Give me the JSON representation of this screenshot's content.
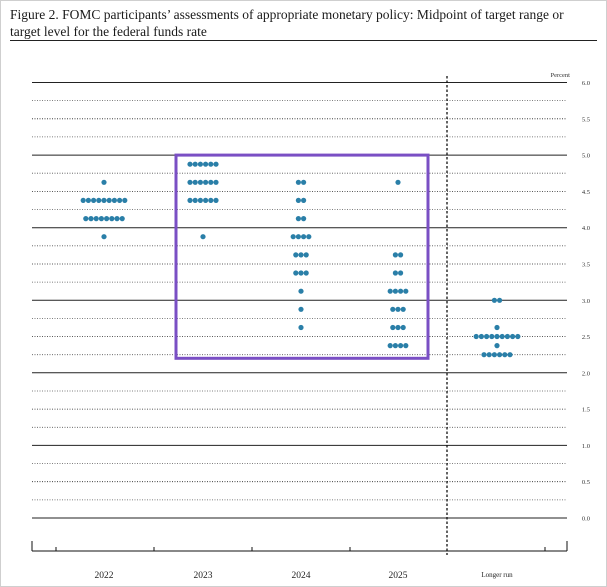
{
  "figure": {
    "title": "Figure 2.  FOMC participants’ assessments of appropriate monetary policy:  Midpoint of target range or target level for the federal funds rate"
  },
  "chart_data": {
    "type": "scatter",
    "title": "Figure 2.  FOMC participants’ assessments of appropriate monetary policy:  Midpoint of target range or target level for the federal funds rate",
    "unit_label": "Percent",
    "categories": [
      "2022",
      "2023",
      "2024",
      "2025",
      "Longer run"
    ],
    "ylim": [
      0,
      6
    ],
    "yticks": [
      "0.0",
      "0.5",
      "1.0",
      "1.5",
      "2.0",
      "2.5",
      "3.0",
      "3.5",
      "4.0",
      "4.5",
      "5.0",
      "5.5",
      "6.0"
    ],
    "grid": true,
    "dot_color": "#2a7fa8",
    "highlight_box": {
      "from_category": "2023",
      "to_category": "2025",
      "y_range": [
        2.2,
        5.0
      ],
      "color": "#7a4fc4"
    },
    "dots": [
      {
        "category": "2022",
        "points": [
          {
            "y": 4.625,
            "n": 1
          },
          {
            "y": 4.375,
            "n": 9
          },
          {
            "y": 4.125,
            "n": 8
          },
          {
            "y": 3.875,
            "n": 1
          }
        ]
      },
      {
        "category": "2023",
        "points": [
          {
            "y": 4.875,
            "n": 6
          },
          {
            "y": 4.625,
            "n": 6
          },
          {
            "y": 4.375,
            "n": 6
          },
          {
            "y": 3.875,
            "n": 1
          }
        ]
      },
      {
        "category": "2024",
        "points": [
          {
            "y": 4.625,
            "n": 2
          },
          {
            "y": 4.375,
            "n": 2
          },
          {
            "y": 4.125,
            "n": 2
          },
          {
            "y": 3.875,
            "n": 4
          },
          {
            "y": 3.625,
            "n": 3
          },
          {
            "y": 3.375,
            "n": 3
          },
          {
            "y": 3.125,
            "n": 1
          },
          {
            "y": 2.875,
            "n": 1
          },
          {
            "y": 2.625,
            "n": 1
          }
        ]
      },
      {
        "category": "2025",
        "points": [
          {
            "y": 4.625,
            "n": 1
          },
          {
            "y": 3.625,
            "n": 2
          },
          {
            "y": 3.375,
            "n": 2
          },
          {
            "y": 3.125,
            "n": 4
          },
          {
            "y": 2.875,
            "n": 3
          },
          {
            "y": 2.625,
            "n": 3
          },
          {
            "y": 2.375,
            "n": 4
          }
        ]
      },
      {
        "category": "Longer run",
        "points": [
          {
            "y": 3.0,
            "n": 2
          },
          {
            "y": 2.625,
            "n": 1
          },
          {
            "y": 2.5,
            "n": 9
          },
          {
            "y": 2.375,
            "n": 1
          },
          {
            "y": 2.25,
            "n": 6
          }
        ]
      }
    ]
  }
}
